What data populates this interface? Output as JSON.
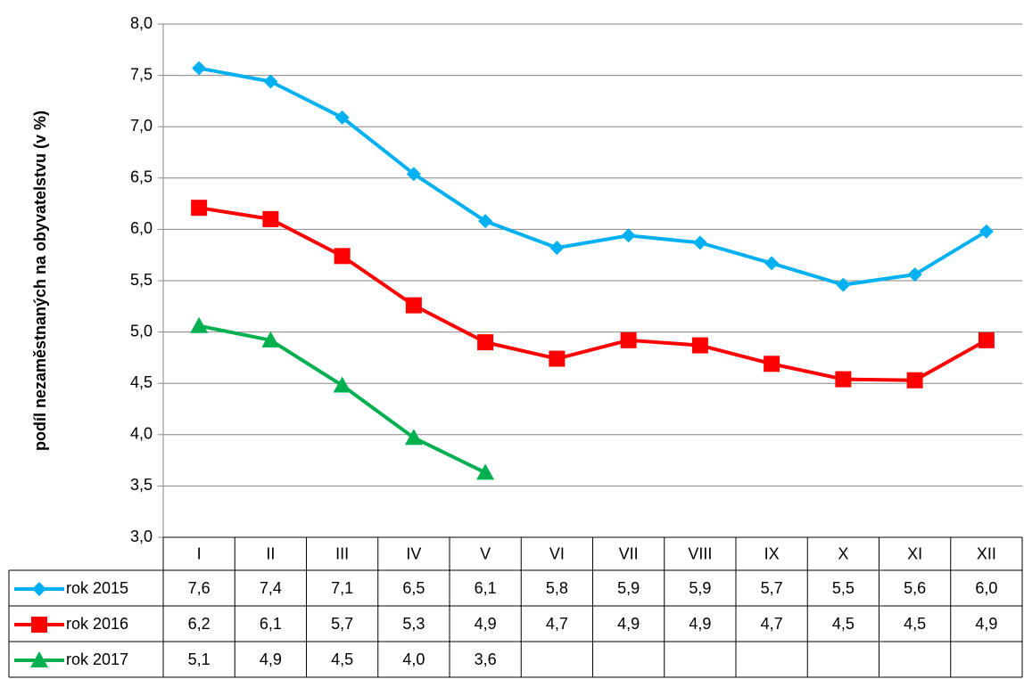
{
  "chart_data": {
    "type": "line",
    "y_label": "podíl nezaměstnaných na obyvatelstvu (v %)",
    "categories": [
      "I",
      "II",
      "III",
      "IV",
      "V",
      "VI",
      "VII",
      "VIII",
      "IX",
      "X",
      "XI",
      "XII"
    ],
    "series": [
      {
        "name": "rok 2015",
        "color": "#00b0f0",
        "marker": "diamond",
        "values": [
          7.57,
          7.44,
          7.09,
          6.54,
          6.08,
          5.82,
          5.94,
          5.87,
          5.67,
          5.46,
          5.56,
          5.98
        ],
        "value_labels": [
          "7,6",
          "7,4",
          "7,1",
          "6,5",
          "6,1",
          "5,8",
          "5,9",
          "5,9",
          "5,7",
          "5,5",
          "5,6",
          "6,0"
        ]
      },
      {
        "name": "rok 2016",
        "color": "#ff0000",
        "marker": "square",
        "values": [
          6.21,
          6.1,
          5.74,
          5.26,
          4.9,
          4.74,
          4.92,
          4.87,
          4.69,
          4.54,
          4.53,
          4.92
        ],
        "value_labels": [
          "6,2",
          "6,1",
          "5,7",
          "5,3",
          "4,9",
          "4,7",
          "4,9",
          "4,9",
          "4,7",
          "4,5",
          "4,5",
          "4,9"
        ]
      },
      {
        "name": "rok 2017",
        "color": "#00b050",
        "marker": "triangle",
        "values": [
          5.06,
          4.92,
          4.48,
          3.97,
          3.63,
          null,
          null,
          null,
          null,
          null,
          null,
          null
        ],
        "value_labels": [
          "5,1",
          "4,9",
          "4,5",
          "4,0",
          "3,6",
          null,
          null,
          null,
          null,
          null,
          null,
          null
        ]
      }
    ],
    "ylim": [
      3,
      8
    ],
    "yticks": [
      {
        "value": 3,
        "label": "3,0"
      },
      {
        "value": 3.5,
        "label": "3,5"
      },
      {
        "value": 4,
        "label": "4,0"
      },
      {
        "value": 4.5,
        "label": "4,5"
      },
      {
        "value": 5,
        "label": "5,0"
      },
      {
        "value": 5.5,
        "label": "5,5"
      },
      {
        "value": 6,
        "label": "6,0"
      },
      {
        "value": 6.5,
        "label": "6,5"
      },
      {
        "value": 7,
        "label": "7,0"
      },
      {
        "value": 7.5,
        "label": "7,5"
      },
      {
        "value": 8,
        "label": "8,0"
      }
    ],
    "grid": true
  }
}
